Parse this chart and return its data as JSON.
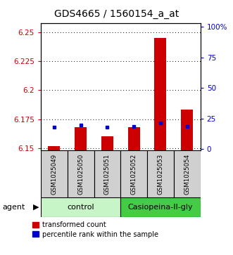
{
  "title": "GDS4665 / 1560154_a_at",
  "samples": [
    "GSM1025049",
    "GSM1025050",
    "GSM1025051",
    "GSM1025052",
    "GSM1025053",
    "GSM1025054"
  ],
  "red_values": [
    6.152,
    6.168,
    6.16,
    6.168,
    6.245,
    6.183
  ],
  "blue_values": [
    6.168,
    6.17,
    6.168,
    6.169,
    6.172,
    6.169
  ],
  "ylim_left": [
    6.148,
    6.258
  ],
  "ylim_right": [
    -1.04,
    103.2
  ],
  "yticks_left": [
    6.15,
    6.175,
    6.2,
    6.225,
    6.25
  ],
  "yticks_right": [
    0,
    25,
    50,
    75,
    100
  ],
  "ytick_labels_left": [
    "6.15",
    "6.175",
    "6.2",
    "6.225",
    "6.25"
  ],
  "ytick_labels_right": [
    "0",
    "25",
    "50",
    "75",
    "100%"
  ],
  "groups": [
    {
      "label": "control",
      "indices": [
        0,
        1,
        2
      ],
      "color": "#c8f5c8"
    },
    {
      "label": "Casiopeina-II-gly",
      "indices": [
        3,
        4,
        5
      ],
      "color": "#44cc44"
    }
  ],
  "agent_label": "agent",
  "bar_color": "#cc0000",
  "dot_color": "#0000cc",
  "bar_width": 0.45,
  "baseline": 6.148,
  "label_bg_color": "#d0d0d0",
  "title_fontsize": 10,
  "tick_fontsize": 7.5,
  "sample_fontsize": 6.2,
  "group_fontsize": 8,
  "legend_fontsize": 7,
  "agent_fontsize": 8
}
